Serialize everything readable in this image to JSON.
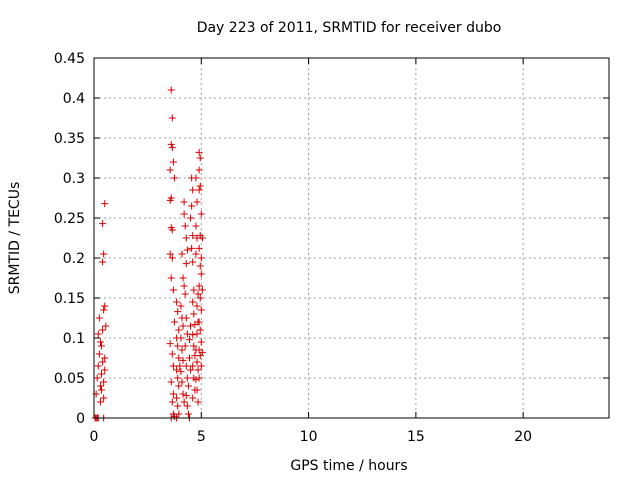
{
  "chart_data": {
    "type": "scatter",
    "title": "Day 223 of 2011, SRMTID for receiver dubo",
    "xlabel": "GPS time / hours",
    "ylabel": "SRMTID / TECUs",
    "xlim": [
      0,
      24
    ],
    "ylim": [
      0,
      0.45
    ],
    "xticks": [
      0,
      5,
      10,
      15,
      20
    ],
    "xtick_labels": [
      "0",
      "5",
      "10",
      "15",
      "20"
    ],
    "yticks": [
      0,
      0.05,
      0.1,
      0.15,
      0.2,
      0.25,
      0.3,
      0.35,
      0.4,
      0.45
    ],
    "ytick_labels": [
      "0",
      "0.05",
      "0.1",
      "0.15",
      "0.2",
      "0.25",
      "0.3",
      "0.35",
      "0.4",
      "0.45"
    ],
    "grid": true,
    "marker": "+",
    "color": "#d40000",
    "series": [
      {
        "points": [
          [
            0.05,
            0.0
          ],
          [
            0.1,
            0.0
          ],
          [
            0.15,
            0.0
          ],
          [
            0.2,
            0.0
          ],
          [
            0.45,
            0.0
          ],
          [
            0.1,
            0.03
          ],
          [
            0.15,
            0.05
          ],
          [
            0.2,
            0.065
          ],
          [
            0.25,
            0.08
          ],
          [
            0.3,
            0.095
          ],
          [
            0.2,
            0.105
          ],
          [
            0.25,
            0.125
          ],
          [
            0.3,
            0.04
          ],
          [
            0.35,
            0.055
          ],
          [
            0.4,
            0.07
          ],
          [
            0.35,
            0.09
          ],
          [
            0.4,
            0.11
          ],
          [
            0.45,
            0.025
          ],
          [
            0.45,
            0.045
          ],
          [
            0.5,
            0.06
          ],
          [
            0.5,
            0.075
          ],
          [
            0.45,
            0.135
          ],
          [
            0.5,
            0.14
          ],
          [
            0.55,
            0.115
          ],
          [
            0.3,
            0.02
          ],
          [
            0.35,
            0.035
          ],
          [
            0.4,
            0.195
          ],
          [
            0.45,
            0.205
          ],
          [
            0.4,
            0.243
          ],
          [
            0.5,
            0.268
          ],
          [
            3.6,
            0.41
          ],
          [
            3.65,
            0.375
          ],
          [
            3.6,
            0.342
          ],
          [
            3.65,
            0.338
          ],
          [
            3.7,
            0.32
          ],
          [
            3.55,
            0.31
          ],
          [
            3.75,
            0.3
          ],
          [
            3.6,
            0.275
          ],
          [
            3.55,
            0.272
          ],
          [
            3.6,
            0.238
          ],
          [
            3.65,
            0.235
          ],
          [
            3.55,
            0.205
          ],
          [
            3.65,
            0.2
          ],
          [
            3.6,
            0.175
          ],
          [
            3.7,
            0.16
          ],
          [
            3.75,
            0.12
          ],
          [
            3.55,
            0.093
          ],
          [
            3.65,
            0.08
          ],
          [
            3.7,
            0.065
          ],
          [
            3.6,
            0.045
          ],
          [
            3.7,
            0.03
          ],
          [
            3.65,
            0.02
          ],
          [
            3.7,
            0.005
          ],
          [
            3.6,
            0.0
          ],
          [
            3.75,
            0.002
          ],
          [
            3.85,
            0.145
          ],
          [
            3.9,
            0.133
          ],
          [
            3.95,
            0.11
          ],
          [
            3.85,
            0.1
          ],
          [
            3.9,
            0.09
          ],
          [
            3.95,
            0.075
          ],
          [
            3.85,
            0.06
          ],
          [
            3.9,
            0.05
          ],
          [
            3.95,
            0.04
          ],
          [
            3.85,
            0.025
          ],
          [
            3.9,
            0.015
          ],
          [
            3.95,
            0.005
          ],
          [
            3.85,
            0.0
          ],
          [
            4.0,
            0.065
          ],
          [
            4.05,
            0.14
          ],
          [
            4.1,
            0.125
          ],
          [
            4.15,
            0.115
          ],
          [
            4.05,
            0.1
          ],
          [
            4.1,
            0.085
          ],
          [
            4.15,
            0.072
          ],
          [
            4.05,
            0.058
          ],
          [
            4.1,
            0.045
          ],
          [
            4.15,
            0.03
          ],
          [
            4.2,
            0.02
          ],
          [
            4.1,
            0.205
          ],
          [
            4.15,
            0.175
          ],
          [
            4.2,
            0.165
          ],
          [
            4.25,
            0.155
          ],
          [
            4.2,
            0.27
          ],
          [
            4.25,
            0.24
          ],
          [
            4.3,
            0.225
          ],
          [
            4.35,
            0.21
          ],
          [
            4.3,
            0.193
          ],
          [
            4.2,
            0.255
          ],
          [
            4.3,
            0.125
          ],
          [
            4.35,
            0.105
          ],
          [
            4.25,
            0.09
          ],
          [
            4.3,
            0.065
          ],
          [
            4.35,
            0.05
          ],
          [
            4.4,
            0.04
          ],
          [
            4.3,
            0.028
          ],
          [
            4.35,
            0.015
          ],
          [
            4.4,
            0.005
          ],
          [
            4.45,
            0.0
          ],
          [
            4.45,
            0.075
          ],
          [
            4.5,
            0.06
          ],
          [
            4.5,
            0.115
          ],
          [
            4.45,
            0.098
          ],
          [
            4.55,
            0.3
          ],
          [
            4.6,
            0.285
          ],
          [
            4.55,
            0.265
          ],
          [
            4.5,
            0.25
          ],
          [
            4.6,
            0.228
          ],
          [
            4.55,
            0.212
          ],
          [
            4.6,
            0.195
          ],
          [
            4.65,
            0.16
          ],
          [
            4.6,
            0.145
          ],
          [
            4.65,
            0.13
          ],
          [
            4.7,
            0.117
          ],
          [
            4.6,
            0.104
          ],
          [
            4.65,
            0.09
          ],
          [
            4.7,
            0.078
          ],
          [
            4.6,
            0.065
          ],
          [
            4.65,
            0.05
          ],
          [
            4.7,
            0.035
          ],
          [
            4.6,
            0.025
          ],
          [
            4.75,
            0.3
          ],
          [
            4.8,
            0.27
          ],
          [
            4.75,
            0.24
          ],
          [
            4.8,
            0.225
          ],
          [
            4.75,
            0.205
          ],
          [
            4.85,
            0.155
          ],
          [
            4.8,
            0.14
          ],
          [
            4.85,
            0.12
          ],
          [
            4.8,
            0.105
          ],
          [
            4.75,
            0.085
          ],
          [
            4.8,
            0.07
          ],
          [
            4.85,
            0.06
          ],
          [
            4.75,
            0.048
          ],
          [
            4.8,
            0.035
          ],
          [
            4.85,
            0.02
          ],
          [
            4.9,
            0.332
          ],
          [
            4.95,
            0.325
          ],
          [
            4.9,
            0.31
          ],
          [
            4.95,
            0.29
          ],
          [
            4.9,
            0.285
          ],
          [
            5.0,
            0.255
          ],
          [
            4.95,
            0.228
          ],
          [
            5.05,
            0.225
          ],
          [
            4.9,
            0.212
          ],
          [
            5.0,
            0.2
          ],
          [
            4.95,
            0.19
          ],
          [
            5.0,
            0.18
          ],
          [
            4.9,
            0.165
          ],
          [
            5.05,
            0.16
          ],
          [
            4.95,
            0.15
          ],
          [
            5.0,
            0.135
          ],
          [
            4.9,
            0.12
          ],
          [
            4.95,
            0.11
          ],
          [
            5.0,
            0.095
          ],
          [
            4.9,
            0.085
          ],
          [
            5.05,
            0.082
          ],
          [
            4.95,
            0.078
          ],
          [
            5.0,
            0.065
          ],
          [
            4.9,
            0.05
          ]
        ]
      }
    ]
  }
}
